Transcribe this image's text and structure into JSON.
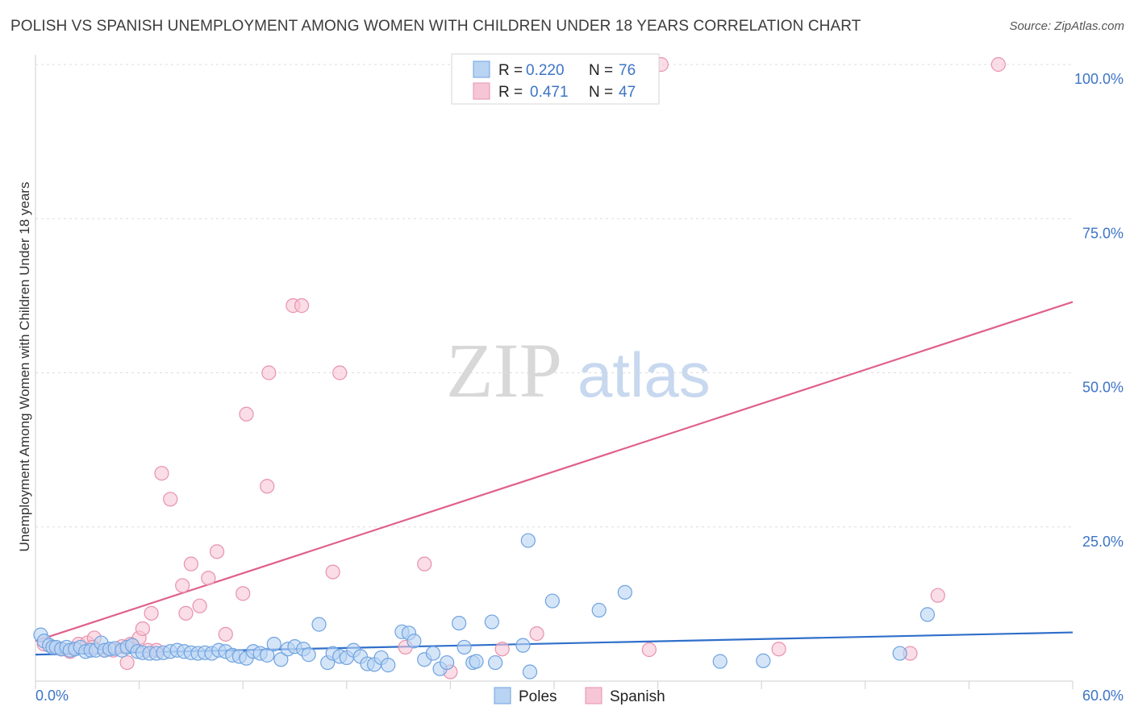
{
  "title": "POLISH VS SPANISH UNEMPLOYMENT AMONG WOMEN WITH CHILDREN UNDER 18 YEARS CORRELATION CHART",
  "source": "Source: ZipAtlas.com",
  "watermark": {
    "zip": "ZIP",
    "atlas": "atlas"
  },
  "legend": {
    "r_label": "R =",
    "n_label": "N =",
    "rows": [
      {
        "name": "Poles",
        "r": "0.220",
        "n": "76"
      },
      {
        "name": "Spanish",
        "r": "0.471",
        "n": "47"
      }
    ]
  },
  "chart_data": {
    "type": "scatter",
    "title": "POLISH VS SPANISH UNEMPLOYMENT AMONG WOMEN WITH CHILDREN UNDER 18 YEARS CORRELATION CHART",
    "xlabel": "",
    "ylabel": "Unemployment Among Women with Children Under 18 years",
    "xlim": [
      0,
      60
    ],
    "ylim": [
      0,
      105
    ],
    "x_tick_labels": [
      "0.0%",
      "60.0%"
    ],
    "y_ticks": [
      25,
      50,
      75,
      100
    ],
    "y_tick_labels": [
      "25.0%",
      "50.0%",
      "75.0%",
      "100.0%"
    ],
    "grid": true,
    "legend_position": "top-center",
    "series": [
      {
        "name": "Poles",
        "color": "#6fa3e0",
        "fill": "#b9d3f3",
        "trend": {
          "x": [
            0,
            60
          ],
          "y": [
            4.3,
            7.9
          ]
        },
        "points": [
          [
            0.3,
            7.5
          ],
          [
            0.5,
            6.5
          ],
          [
            0.8,
            5.8
          ],
          [
            1.0,
            5.5
          ],
          [
            1.2,
            5.5
          ],
          [
            1.5,
            5.2
          ],
          [
            1.8,
            5.5
          ],
          [
            2.0,
            5.0
          ],
          [
            2.3,
            5.2
          ],
          [
            2.6,
            5.5
          ],
          [
            2.9,
            4.8
          ],
          [
            3.2,
            5.0
          ],
          [
            3.5,
            5.0
          ],
          [
            3.8,
            6.2
          ],
          [
            4.0,
            5.0
          ],
          [
            4.3,
            5.2
          ],
          [
            4.6,
            5.3
          ],
          [
            5.0,
            5.0
          ],
          [
            5.3,
            5.5
          ],
          [
            5.6,
            5.8
          ],
          [
            5.9,
            4.8
          ],
          [
            6.2,
            4.6
          ],
          [
            6.6,
            4.5
          ],
          [
            7.0,
            4.5
          ],
          [
            7.4,
            4.6
          ],
          [
            7.8,
            4.8
          ],
          [
            8.2,
            5.0
          ],
          [
            8.6,
            4.8
          ],
          [
            9.0,
            4.6
          ],
          [
            9.4,
            4.5
          ],
          [
            9.8,
            4.6
          ],
          [
            10.2,
            4.5
          ],
          [
            10.6,
            5.0
          ],
          [
            11.0,
            4.8
          ],
          [
            11.4,
            4.2
          ],
          [
            11.8,
            4.0
          ],
          [
            12.2,
            3.7
          ],
          [
            12.6,
            4.8
          ],
          [
            13.0,
            4.5
          ],
          [
            13.4,
            4.2
          ],
          [
            13.8,
            6.0
          ],
          [
            14.2,
            3.5
          ],
          [
            14.6,
            5.2
          ],
          [
            15.0,
            5.6
          ],
          [
            15.5,
            5.2
          ],
          [
            15.8,
            4.3
          ],
          [
            16.4,
            9.2
          ],
          [
            16.9,
            3.0
          ],
          [
            17.2,
            4.5
          ],
          [
            17.6,
            4.0
          ],
          [
            18.0,
            3.8
          ],
          [
            18.4,
            5.0
          ],
          [
            18.8,
            4.0
          ],
          [
            19.2,
            2.8
          ],
          [
            19.6,
            2.7
          ],
          [
            20.0,
            3.8
          ],
          [
            20.4,
            2.6
          ],
          [
            21.2,
            8.0
          ],
          [
            21.6,
            7.8
          ],
          [
            21.9,
            6.5
          ],
          [
            22.5,
            3.5
          ],
          [
            23.0,
            4.5
          ],
          [
            23.4,
            2.0
          ],
          [
            23.8,
            3.0
          ],
          [
            24.5,
            9.4
          ],
          [
            24.8,
            5.5
          ],
          [
            25.3,
            3.0
          ],
          [
            25.5,
            3.2
          ],
          [
            26.4,
            9.6
          ],
          [
            26.6,
            3.0
          ],
          [
            28.2,
            5.8
          ],
          [
            28.6,
            1.5
          ],
          [
            28.5,
            22.8
          ],
          [
            29.9,
            13.0
          ],
          [
            32.6,
            11.5
          ],
          [
            34.1,
            14.4
          ],
          [
            39.6,
            3.2
          ],
          [
            42.1,
            3.3
          ],
          [
            50.0,
            4.5
          ],
          [
            51.6,
            10.8
          ]
        ]
      },
      {
        "name": "Spanish",
        "color": "#e892ad",
        "fill": "#f6c6d6",
        "trend": {
          "x": [
            0,
            60
          ],
          "y": [
            6.5,
            61.5
          ]
        },
        "points": [
          [
            0.5,
            6.0
          ],
          [
            1.0,
            5.5
          ],
          [
            1.5,
            5.2
          ],
          [
            2.0,
            4.8
          ],
          [
            2.5,
            6.0
          ],
          [
            3.0,
            6.2
          ],
          [
            3.4,
            7.0
          ],
          [
            4.0,
            5.0
          ],
          [
            4.5,
            5.0
          ],
          [
            5.0,
            5.6
          ],
          [
            5.5,
            6.0
          ],
          [
            6.0,
            7.0
          ],
          [
            6.5,
            5.0
          ],
          [
            7.0,
            5.0
          ],
          [
            3.3,
            5.5
          ],
          [
            5.3,
            3.0
          ],
          [
            6.2,
            8.5
          ],
          [
            6.7,
            11.0
          ],
          [
            7.3,
            33.7
          ],
          [
            7.8,
            29.5
          ],
          [
            8.5,
            15.5
          ],
          [
            8.7,
            11.0
          ],
          [
            9.0,
            19.0
          ],
          [
            9.5,
            12.2
          ],
          [
            10.0,
            16.7
          ],
          [
            10.5,
            21.0
          ],
          [
            11.0,
            7.6
          ],
          [
            12.0,
            14.2
          ],
          [
            12.2,
            43.3
          ],
          [
            13.4,
            31.6
          ],
          [
            13.5,
            50.0
          ],
          [
            14.9,
            60.9
          ],
          [
            15.4,
            60.9
          ],
          [
            17.2,
            17.7
          ],
          [
            17.6,
            50.0
          ],
          [
            21.4,
            5.5
          ],
          [
            22.5,
            19.0
          ],
          [
            24.0,
            1.5
          ],
          [
            29.0,
            7.7
          ],
          [
            35.5,
            5.1
          ],
          [
            36.2,
            100.0
          ],
          [
            43.0,
            5.2
          ],
          [
            50.6,
            4.5
          ],
          [
            52.2,
            13.9
          ],
          [
            55.7,
            100.0
          ],
          [
            27.0,
            5.2
          ]
        ]
      }
    ]
  }
}
